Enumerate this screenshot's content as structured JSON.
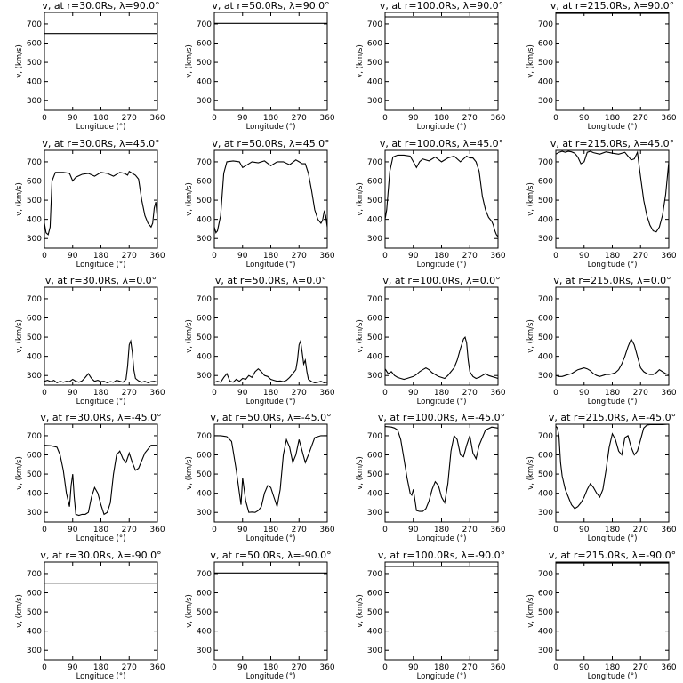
{
  "figure": {
    "background": "#ffffff",
    "line_color": "#000000",
    "panel_titles": [
      [
        "v, at r=30.0Rs, λ=90.0°",
        "v, at r=50.0Rs, λ=90.0°",
        "v, at r=100.0Rs, λ=90.0°",
        "v, at r=215.0Rs, λ=90.0°"
      ],
      [
        "v, at r=30.0Rs, λ=45.0°",
        "v, at r=50.0Rs, λ=45.0°",
        "v, at r=100.0Rs, λ=45.0°",
        "v, at r=215.0Rs, λ=45.0°"
      ],
      [
        "v, at r=30.0Rs, λ=0.0°",
        "v, at r=50.0Rs, λ=0.0°",
        "v, at r=100.0Rs, λ=0.0°",
        "v, at r=215.0Rs, λ=0.0°"
      ],
      [
        "v, at r=30.0Rs, λ=-45.0°",
        "v, at r=50.0Rs, λ=-45.0°",
        "v, at r=100.0Rs, λ=-45.0°",
        "v, at r=215.0Rs, λ=-45.0°"
      ],
      [
        "v, at r=30.0Rs, λ=-90.0°",
        "v, at r=50.0Rs, λ=-90.0°",
        "v, at r=100.0Rs, λ=-90.0°",
        "v, at r=215.0Rs, λ=-90.0°"
      ]
    ]
  },
  "chart_data": {
    "type": "line",
    "layout": "grid 5 rows x 4 columns",
    "xlabel": "Longitude (°)",
    "ylabel": "v, (km/s)",
    "xlim": [
      0,
      360
    ],
    "ylim": [
      250,
      760
    ],
    "xticks": [
      "0",
      "90",
      "180",
      "270",
      "360"
    ],
    "yticks": [
      "300",
      "400",
      "500",
      "600",
      "700"
    ],
    "radii_Rs": [
      30,
      50,
      100,
      215
    ],
    "latitudes_deg": [
      90,
      45,
      0,
      -45,
      -90
    ],
    "panels": [
      [
        {
          "x": [
            0,
            360
          ],
          "y": [
            650,
            650
          ]
        },
        {
          "x": [
            0,
            360
          ],
          "y": [
            703,
            703
          ]
        },
        {
          "x": [
            0,
            360
          ],
          "y": [
            737,
            737
          ]
        },
        {
          "x": [
            0,
            360
          ],
          "y": [
            755,
            755
          ]
        }
      ],
      [
        {
          "x": [
            0,
            5,
            12,
            18,
            24,
            35,
            60,
            80,
            90,
            100,
            120,
            140,
            160,
            180,
            200,
            220,
            240,
            255,
            265,
            270,
            280,
            290,
            300,
            310,
            320,
            330,
            340,
            345,
            350,
            355,
            360
          ],
          "y": [
            380,
            330,
            320,
            360,
            600,
            645,
            645,
            640,
            600,
            620,
            635,
            640,
            625,
            645,
            640,
            625,
            645,
            640,
            630,
            650,
            640,
            630,
            610,
            500,
            420,
            380,
            360,
            380,
            460,
            490,
            400
          ]
        },
        {
          "x": [
            0,
            5,
            10,
            20,
            30,
            40,
            60,
            80,
            90,
            100,
            120,
            140,
            160,
            180,
            200,
            220,
            240,
            260,
            270,
            280,
            290,
            300,
            310,
            320,
            330,
            340,
            345,
            350,
            355,
            360
          ],
          "y": [
            360,
            330,
            340,
            420,
            640,
            700,
            705,
            700,
            670,
            680,
            700,
            695,
            705,
            680,
            700,
            700,
            685,
            710,
            700,
            690,
            690,
            640,
            550,
            450,
            400,
            380,
            395,
            440,
            420,
            360
          ]
        },
        {
          "x": [
            0,
            5,
            15,
            25,
            40,
            60,
            80,
            90,
            100,
            110,
            120,
            140,
            160,
            180,
            200,
            220,
            240,
            260,
            270,
            280,
            290,
            300,
            310,
            320,
            330,
            340,
            345,
            350,
            355,
            360
          ],
          "y": [
            400,
            450,
            650,
            725,
            735,
            735,
            730,
            700,
            670,
            700,
            715,
            705,
            725,
            700,
            720,
            730,
            700,
            730,
            720,
            720,
            700,
            650,
            520,
            450,
            410,
            390,
            370,
            340,
            320,
            310
          ]
        },
        {
          "x": [
            0,
            10,
            20,
            30,
            40,
            50,
            60,
            70,
            80,
            90,
            100,
            110,
            120,
            140,
            160,
            180,
            200,
            220,
            230,
            240,
            250,
            260,
            270,
            280,
            290,
            300,
            310,
            320,
            330,
            340,
            350,
            360
          ],
          "y": [
            740,
            750,
            755,
            750,
            755,
            752,
            745,
            725,
            690,
            700,
            750,
            755,
            748,
            740,
            752,
            745,
            740,
            750,
            730,
            710,
            715,
            750,
            620,
            500,
            420,
            370,
            340,
            335,
            360,
            420,
            530,
            700
          ]
        }
      ],
      [
        {
          "x": [
            0,
            10,
            20,
            30,
            40,
            50,
            60,
            70,
            80,
            90,
            100,
            110,
            120,
            130,
            140,
            150,
            160,
            170,
            180,
            190,
            200,
            210,
            220,
            230,
            240,
            250,
            260,
            265,
            270,
            275,
            280,
            285,
            290,
            300,
            310,
            320,
            330,
            340,
            350,
            360
          ],
          "y": [
            270,
            275,
            268,
            275,
            262,
            270,
            265,
            270,
            268,
            280,
            270,
            265,
            272,
            290,
            310,
            285,
            270,
            275,
            268,
            270,
            262,
            268,
            265,
            275,
            270,
            265,
            280,
            350,
            460,
            480,
            420,
            330,
            285,
            272,
            265,
            270,
            262,
            268,
            270,
            265
          ]
        },
        {
          "x": [
            0,
            10,
            20,
            30,
            40,
            50,
            60,
            70,
            80,
            90,
            100,
            110,
            120,
            130,
            140,
            150,
            160,
            170,
            180,
            190,
            200,
            210,
            220,
            230,
            240,
            250,
            260,
            265,
            270,
            275,
            280,
            285,
            290,
            295,
            300,
            310,
            320,
            330,
            340,
            350,
            360
          ],
          "y": [
            265,
            270,
            265,
            290,
            310,
            270,
            265,
            280,
            270,
            285,
            280,
            300,
            290,
            320,
            335,
            320,
            300,
            295,
            280,
            275,
            270,
            272,
            268,
            275,
            290,
            310,
            330,
            380,
            460,
            480,
            420,
            360,
            380,
            320,
            280,
            268,
            262,
            265,
            270,
            262,
            265
          ]
        },
        {
          "x": [
            0,
            10,
            20,
            30,
            40,
            50,
            60,
            70,
            80,
            90,
            100,
            110,
            120,
            130,
            140,
            150,
            160,
            170,
            180,
            190,
            200,
            210,
            220,
            230,
            240,
            250,
            255,
            260,
            265,
            270,
            280,
            290,
            300,
            310,
            320,
            330,
            340,
            350,
            360
          ],
          "y": [
            335,
            310,
            320,
            300,
            290,
            285,
            280,
            285,
            290,
            295,
            305,
            320,
            330,
            340,
            330,
            315,
            305,
            295,
            290,
            285,
            300,
            320,
            340,
            380,
            440,
            490,
            500,
            470,
            380,
            320,
            295,
            285,
            290,
            300,
            310,
            300,
            295,
            290,
            285
          ]
        },
        {
          "x": [
            0,
            10,
            20,
            30,
            40,
            50,
            60,
            70,
            80,
            90,
            100,
            110,
            120,
            130,
            140,
            150,
            160,
            170,
            180,
            190,
            200,
            210,
            220,
            230,
            240,
            250,
            260,
            270,
            280,
            290,
            300,
            310,
            320,
            330,
            340,
            350,
            360
          ],
          "y": [
            300,
            295,
            295,
            300,
            305,
            310,
            320,
            330,
            335,
            340,
            335,
            325,
            310,
            300,
            295,
            300,
            305,
            305,
            310,
            315,
            330,
            360,
            400,
            450,
            490,
            460,
            400,
            340,
            320,
            310,
            305,
            305,
            315,
            330,
            320,
            310,
            305
          ]
        }
      ],
      [
        {
          "x": [
            0,
            20,
            40,
            50,
            60,
            70,
            80,
            85,
            90,
            95,
            100,
            110,
            120,
            130,
            140,
            150,
            160,
            170,
            180,
            190,
            200,
            210,
            220,
            230,
            240,
            250,
            260,
            270,
            280,
            290,
            300,
            320,
            340,
            360
          ],
          "y": [
            650,
            648,
            640,
            600,
            520,
            400,
            330,
            440,
            500,
            380,
            290,
            285,
            290,
            290,
            300,
            380,
            430,
            400,
            340,
            290,
            300,
            350,
            500,
            600,
            620,
            580,
            560,
            610,
            560,
            520,
            530,
            610,
            650,
            650
          ]
        },
        {
          "x": [
            0,
            20,
            40,
            55,
            60,
            70,
            80,
            85,
            90,
            100,
            110,
            120,
            130,
            140,
            150,
            160,
            170,
            180,
            190,
            200,
            210,
            220,
            230,
            240,
            250,
            260,
            270,
            280,
            290,
            300,
            320,
            340,
            360
          ],
          "y": [
            700,
            700,
            695,
            670,
            620,
            520,
            400,
            340,
            480,
            360,
            300,
            302,
            300,
            310,
            330,
            400,
            440,
            430,
            380,
            330,
            420,
            600,
            680,
            640,
            560,
            600,
            680,
            620,
            560,
            600,
            690,
            700,
            700
          ]
        },
        {
          "x": [
            0,
            20,
            30,
            40,
            50,
            60,
            70,
            80,
            85,
            90,
            100,
            110,
            120,
            130,
            140,
            150,
            160,
            170,
            180,
            190,
            200,
            210,
            220,
            230,
            240,
            250,
            260,
            270,
            280,
            290,
            300,
            320,
            340,
            360
          ],
          "y": [
            748,
            745,
            740,
            730,
            680,
            580,
            480,
            400,
            390,
            420,
            310,
            305,
            305,
            320,
            360,
            420,
            460,
            440,
            380,
            350,
            450,
            620,
            700,
            680,
            600,
            590,
            650,
            700,
            610,
            580,
            650,
            730,
            745,
            740
          ]
        },
        {
          "x": [
            0,
            5,
            10,
            15,
            20,
            30,
            40,
            50,
            60,
            70,
            80,
            90,
            100,
            110,
            120,
            130,
            140,
            150,
            160,
            170,
            180,
            190,
            200,
            210,
            220,
            230,
            240,
            250,
            260,
            270,
            280,
            290,
            300,
            320,
            340,
            360
          ],
          "y": [
            750,
            740,
            700,
            560,
            490,
            420,
            380,
            340,
            320,
            330,
            350,
            380,
            420,
            450,
            430,
            400,
            380,
            420,
            520,
            640,
            710,
            680,
            620,
            600,
            690,
            700,
            640,
            600,
            620,
            680,
            740,
            755,
            758,
            758,
            758,
            760
          ]
        }
      ],
      [
        {
          "x": [
            0,
            360
          ],
          "y": [
            650,
            650
          ]
        },
        {
          "x": [
            0,
            360
          ],
          "y": [
            703,
            703
          ]
        },
        {
          "x": [
            0,
            360
          ],
          "y": [
            737,
            737
          ]
        },
        {
          "x": [
            0,
            360
          ],
          "y": [
            755,
            755
          ]
        }
      ]
    ]
  }
}
